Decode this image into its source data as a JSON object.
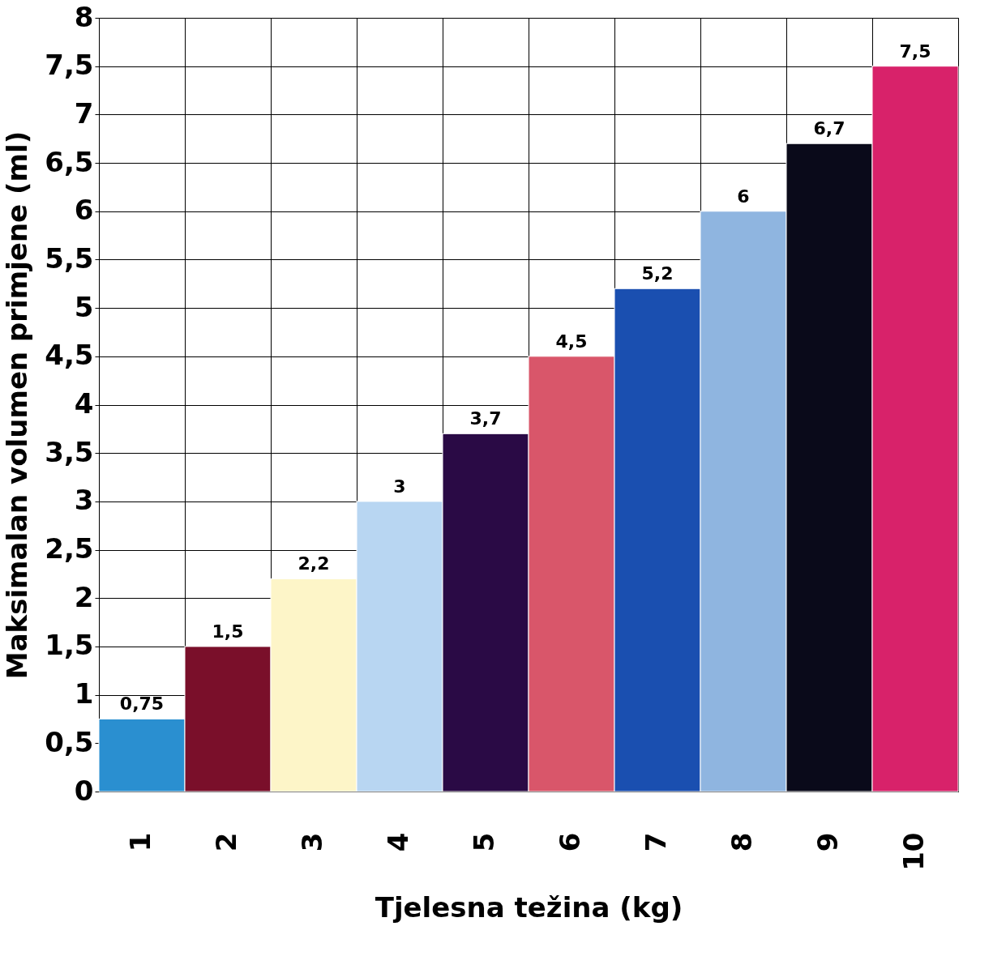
{
  "chart_data": {
    "type": "bar",
    "xlabel": "Tjelesna težina (kg)",
    "ylabel": "Maksimalan volumen primjene (ml)",
    "categories": [
      "1",
      "2",
      "3",
      "4",
      "5",
      "6",
      "7",
      "8",
      "9",
      "10"
    ],
    "values": [
      0.75,
      1.5,
      2.2,
      3,
      3.7,
      4.5,
      5.2,
      6,
      6.7,
      7.5
    ],
    "colors": [
      "#2a8fd0",
      "#7a0f2a",
      "#fdf5c8",
      "#b8d6f2",
      "#2a0a45",
      "#d9566a",
      "#1a4fb0",
      "#8fb5e0",
      "#0a0a1a",
      "#d8226a"
    ],
    "value_labels": [
      "0,75",
      "1,5",
      "2,2",
      "3",
      "3,7",
      "4,5",
      "5,2",
      "6",
      "6,7",
      "7,5"
    ],
    "ylim": [
      0,
      8
    ],
    "yticks": [
      0,
      {
        "value": 0.5,
        "label": "0,5"
      },
      1,
      {
        "value": 1.5,
        "label": "1,5"
      },
      2,
      {
        "value": 2.5,
        "label": "2,5"
      },
      3,
      {
        "value": 3.5,
        "label": "3,5"
      },
      4,
      {
        "value": 4.5,
        "label": "4,5"
      },
      5,
      {
        "value": 5.5,
        "label": "5,5"
      },
      6,
      {
        "value": 6.5,
        "label": "6,5"
      },
      7,
      {
        "value": 7.5,
        "label": "7,5"
      },
      8
    ],
    "grid": true
  }
}
